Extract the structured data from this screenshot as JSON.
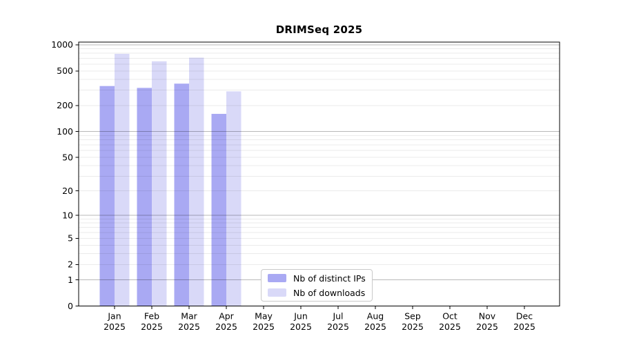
{
  "chart_data": {
    "type": "bar",
    "title": "DRIMSeq 2025",
    "categories": [
      "Jan",
      "Feb",
      "Mar",
      "Apr",
      "May",
      "Jun",
      "Jul",
      "Aug",
      "Sep",
      "Oct",
      "Nov",
      "Dec"
    ],
    "year": "2025",
    "series": [
      {
        "name": "Nb of distinct IPs",
        "color": "#a9a9f3",
        "values": [
          335,
          319,
          357,
          160,
          0,
          0,
          0,
          0,
          0,
          0,
          0,
          0
        ]
      },
      {
        "name": "Nb of downloads",
        "color": "#d9d9f8",
        "values": [
          787,
          645,
          711,
          291,
          0,
          0,
          0,
          0,
          0,
          0,
          0,
          0
        ]
      }
    ],
    "y_axis": {
      "scale": "log10(v+1)",
      "ticks": [
        0,
        1,
        2,
        5,
        10,
        20,
        50,
        100,
        200,
        500,
        1000
      ],
      "max": 1073
    },
    "x_axis": {
      "label_format": "month over year, two lines"
    },
    "grid": {
      "major": "on",
      "minor": "on",
      "major_color": "#b8b8b8",
      "minor_color": "#ececec"
    },
    "legend": {
      "position": "lower-center"
    }
  }
}
